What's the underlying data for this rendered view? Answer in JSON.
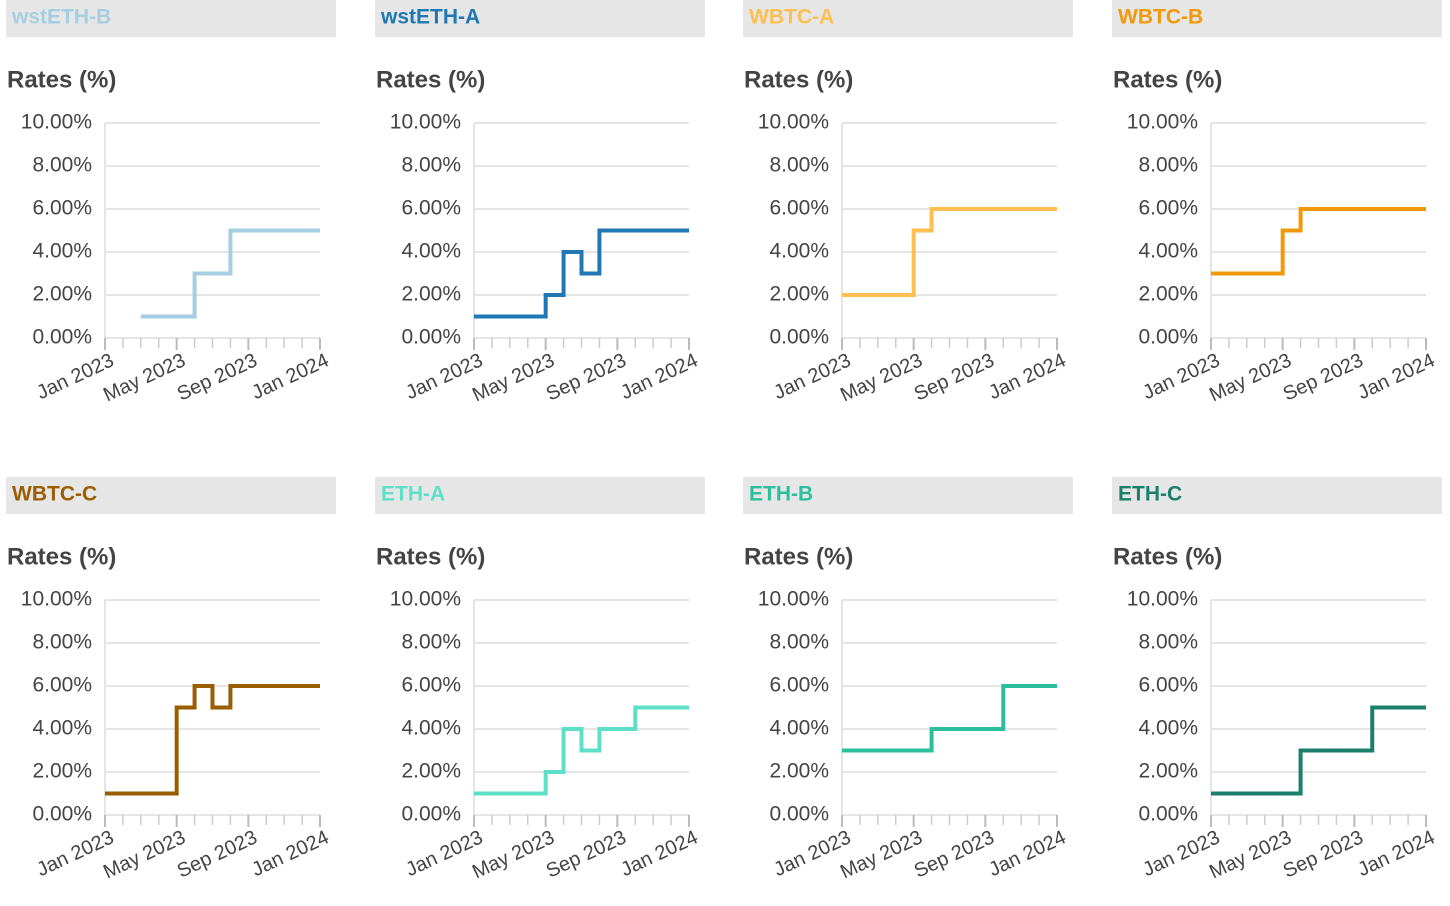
{
  "chart_data": [
    {
      "type": "line",
      "title": "wstETH-B",
      "y_label": "Rates (%)",
      "color": "#a6cee3",
      "x": [
        "2023-03",
        "2023-06",
        "2023-08",
        "2024-01"
      ],
      "values": [
        1,
        3,
        5,
        5
      ],
      "xlim": [
        "2023-01",
        "2024-01"
      ],
      "xticks": [
        {
          "value": "2023-01",
          "label": "Jan 2023"
        },
        {
          "value": "2023-05",
          "label": "May 2023"
        },
        {
          "value": "2023-09",
          "label": "Sep 2023"
        },
        {
          "value": "2024-01",
          "label": "Jan 2024"
        }
      ],
      "ylim": [
        0,
        10
      ],
      "yticks": [
        {
          "value": 0,
          "label": "0.00%"
        },
        {
          "value": 2,
          "label": "2.00%"
        },
        {
          "value": 4,
          "label": "4.00%"
        },
        {
          "value": 6,
          "label": "6.00%"
        },
        {
          "value": 8,
          "label": "8.00%"
        },
        {
          "value": 10,
          "label": "10.00%"
        }
      ],
      "grid": true
    },
    {
      "type": "line",
      "title": "wstETH-A",
      "y_label": "Rates (%)",
      "color": "#1f78b4",
      "x": [
        "2023-01",
        "2023-05",
        "2023-06",
        "2023-07",
        "2023-08",
        "2024-01"
      ],
      "values": [
        1,
        2,
        4,
        3,
        5,
        5
      ],
      "xlim": [
        "2023-01",
        "2024-01"
      ],
      "xticks": [
        {
          "value": "2023-01",
          "label": "Jan 2023"
        },
        {
          "value": "2023-05",
          "label": "May 2023"
        },
        {
          "value": "2023-09",
          "label": "Sep 2023"
        },
        {
          "value": "2024-01",
          "label": "Jan 2024"
        }
      ],
      "ylim": [
        0,
        10
      ],
      "yticks": [
        {
          "value": 0,
          "label": "0.00%"
        },
        {
          "value": 2,
          "label": "2.00%"
        },
        {
          "value": 4,
          "label": "4.00%"
        },
        {
          "value": 6,
          "label": "6.00%"
        },
        {
          "value": 8,
          "label": "8.00%"
        },
        {
          "value": 10,
          "label": "10.00%"
        }
      ],
      "grid": true
    },
    {
      "type": "line",
      "title": "WBTC-A",
      "y_label": "Rates (%)",
      "color": "#fdbf4f",
      "x": [
        "2023-01",
        "2023-05",
        "2023-06",
        "2024-01"
      ],
      "values": [
        2,
        5,
        6,
        6
      ],
      "xlim": [
        "2023-01",
        "2024-01"
      ],
      "xticks": [
        {
          "value": "2023-01",
          "label": "Jan 2023"
        },
        {
          "value": "2023-05",
          "label": "May 2023"
        },
        {
          "value": "2023-09",
          "label": "Sep 2023"
        },
        {
          "value": "2024-01",
          "label": "Jan 2024"
        }
      ],
      "ylim": [
        0,
        10
      ],
      "yticks": [
        {
          "value": 0,
          "label": "0.00%"
        },
        {
          "value": 2,
          "label": "2.00%"
        },
        {
          "value": 4,
          "label": "4.00%"
        },
        {
          "value": 6,
          "label": "6.00%"
        },
        {
          "value": 8,
          "label": "8.00%"
        },
        {
          "value": 10,
          "label": "10.00%"
        }
      ],
      "grid": true
    },
    {
      "type": "line",
      "title": "WBTC-B",
      "y_label": "Rates (%)",
      "color": "#f09a0b",
      "x": [
        "2023-01",
        "2023-05",
        "2023-06",
        "2024-01"
      ],
      "values": [
        3,
        5,
        6,
        6
      ],
      "xlim": [
        "2023-01",
        "2024-01"
      ],
      "xticks": [
        {
          "value": "2023-01",
          "label": "Jan 2023"
        },
        {
          "value": "2023-05",
          "label": "May 2023"
        },
        {
          "value": "2023-09",
          "label": "Sep 2023"
        },
        {
          "value": "2024-01",
          "label": "Jan 2024"
        }
      ],
      "ylim": [
        0,
        10
      ],
      "yticks": [
        {
          "value": 0,
          "label": "0.00%"
        },
        {
          "value": 2,
          "label": "2.00%"
        },
        {
          "value": 4,
          "label": "4.00%"
        },
        {
          "value": 6,
          "label": "6.00%"
        },
        {
          "value": 8,
          "label": "8.00%"
        },
        {
          "value": 10,
          "label": "10.00%"
        }
      ],
      "grid": true
    },
    {
      "type": "line",
      "title": "WBTC-C",
      "y_label": "Rates (%)",
      "color": "#9a5e00",
      "x": [
        "2023-01",
        "2023-05",
        "2023-06",
        "2023-07",
        "2023-08",
        "2024-01"
      ],
      "values": [
        1,
        5,
        6,
        5,
        6,
        6
      ],
      "xlim": [
        "2023-01",
        "2024-01"
      ],
      "xticks": [
        {
          "value": "2023-01",
          "label": "Jan 2023"
        },
        {
          "value": "2023-05",
          "label": "May 2023"
        },
        {
          "value": "2023-09",
          "label": "Sep 2023"
        },
        {
          "value": "2024-01",
          "label": "Jan 2024"
        }
      ],
      "ylim": [
        0,
        10
      ],
      "yticks": [
        {
          "value": 0,
          "label": "0.00%"
        },
        {
          "value": 2,
          "label": "2.00%"
        },
        {
          "value": 4,
          "label": "4.00%"
        },
        {
          "value": 6,
          "label": "6.00%"
        },
        {
          "value": 8,
          "label": "8.00%"
        },
        {
          "value": 10,
          "label": "10.00%"
        }
      ],
      "grid": true
    },
    {
      "type": "line",
      "title": "ETH-A",
      "y_label": "Rates (%)",
      "color": "#5ee0c8",
      "x": [
        "2023-01",
        "2023-05",
        "2023-06",
        "2023-07",
        "2023-08",
        "2023-10",
        "2024-01"
      ],
      "values": [
        1,
        2,
        4,
        3,
        4,
        5,
        5
      ],
      "xlim": [
        "2023-01",
        "2024-01"
      ],
      "xticks": [
        {
          "value": "2023-01",
          "label": "Jan 2023"
        },
        {
          "value": "2023-05",
          "label": "May 2023"
        },
        {
          "value": "2023-09",
          "label": "Sep 2023"
        },
        {
          "value": "2024-01",
          "label": "Jan 2024"
        }
      ],
      "ylim": [
        0,
        10
      ],
      "yticks": [
        {
          "value": 0,
          "label": "0.00%"
        },
        {
          "value": 2,
          "label": "2.00%"
        },
        {
          "value": 4,
          "label": "4.00%"
        },
        {
          "value": 6,
          "label": "6.00%"
        },
        {
          "value": 8,
          "label": "8.00%"
        },
        {
          "value": 10,
          "label": "10.00%"
        }
      ],
      "grid": true
    },
    {
      "type": "line",
      "title": "ETH-B",
      "y_label": "Rates (%)",
      "color": "#2bbf9e",
      "x": [
        "2023-01",
        "2023-06",
        "2023-10",
        "2024-01"
      ],
      "values": [
        3,
        4,
        6,
        6
      ],
      "xlim": [
        "2023-01",
        "2024-01"
      ],
      "xticks": [
        {
          "value": "2023-01",
          "label": "Jan 2023"
        },
        {
          "value": "2023-05",
          "label": "May 2023"
        },
        {
          "value": "2023-09",
          "label": "Sep 2023"
        },
        {
          "value": "2024-01",
          "label": "Jan 2024"
        }
      ],
      "ylim": [
        0,
        10
      ],
      "yticks": [
        {
          "value": 0,
          "label": "0.00%"
        },
        {
          "value": 2,
          "label": "2.00%"
        },
        {
          "value": 4,
          "label": "4.00%"
        },
        {
          "value": 6,
          "label": "6.00%"
        },
        {
          "value": 8,
          "label": "8.00%"
        },
        {
          "value": 10,
          "label": "10.00%"
        }
      ],
      "grid": true
    },
    {
      "type": "line",
      "title": "ETH-C",
      "y_label": "Rates (%)",
      "color": "#1a7f6b",
      "x": [
        "2023-01",
        "2023-06",
        "2023-10",
        "2024-01"
      ],
      "values": [
        1,
        3,
        5,
        5
      ],
      "xlim": [
        "2023-01",
        "2024-01"
      ],
      "xticks": [
        {
          "value": "2023-01",
          "label": "Jan 2023"
        },
        {
          "value": "2023-05",
          "label": "May 2023"
        },
        {
          "value": "2023-09",
          "label": "Sep 2023"
        },
        {
          "value": "2024-01",
          "label": "Jan 2024"
        }
      ],
      "ylim": [
        0,
        10
      ],
      "yticks": [
        {
          "value": 0,
          "label": "0.00%"
        },
        {
          "value": 2,
          "label": "2.00%"
        },
        {
          "value": 4,
          "label": "4.00%"
        },
        {
          "value": 6,
          "label": "6.00%"
        },
        {
          "value": 8,
          "label": "8.00%"
        },
        {
          "value": 10,
          "label": "10.00%"
        }
      ],
      "grid": true
    }
  ]
}
